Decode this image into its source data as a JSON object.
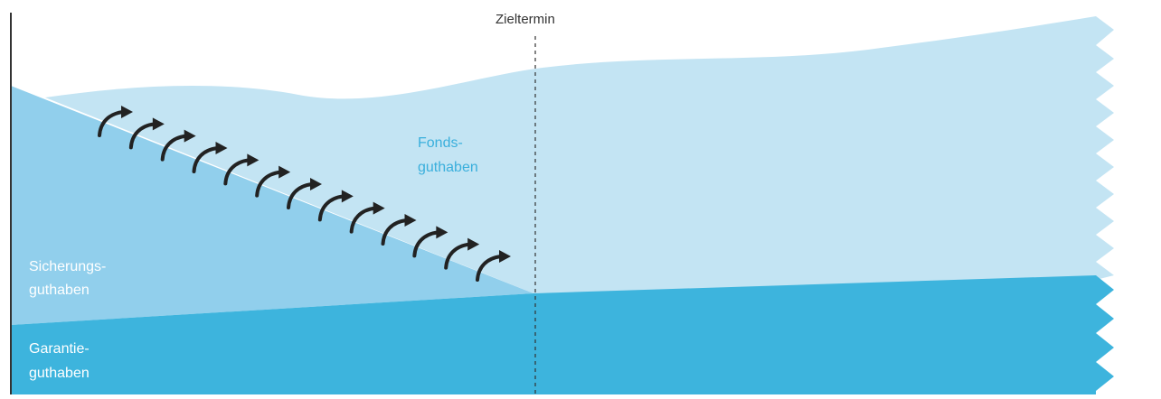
{
  "labels": {
    "target_date": "Zieltermin",
    "fund_line1": "Fonds-",
    "fund_line2": "guthaben",
    "security_line1": "Sicherungs-",
    "security_line2": "guthaben",
    "guarantee_line1": "Garantie-",
    "guarantee_line2": "guthaben"
  },
  "colors": {
    "fund": "#c3e4f3",
    "security": "#91cfec",
    "guarantee": "#3db4dd",
    "fund_label": "#3aafdc",
    "arrow": "#222222",
    "axis": "#333333"
  },
  "transfer_arrows": {
    "count": 13,
    "direction": "from Sicherungsguthaben to Fondsguthaben"
  }
}
